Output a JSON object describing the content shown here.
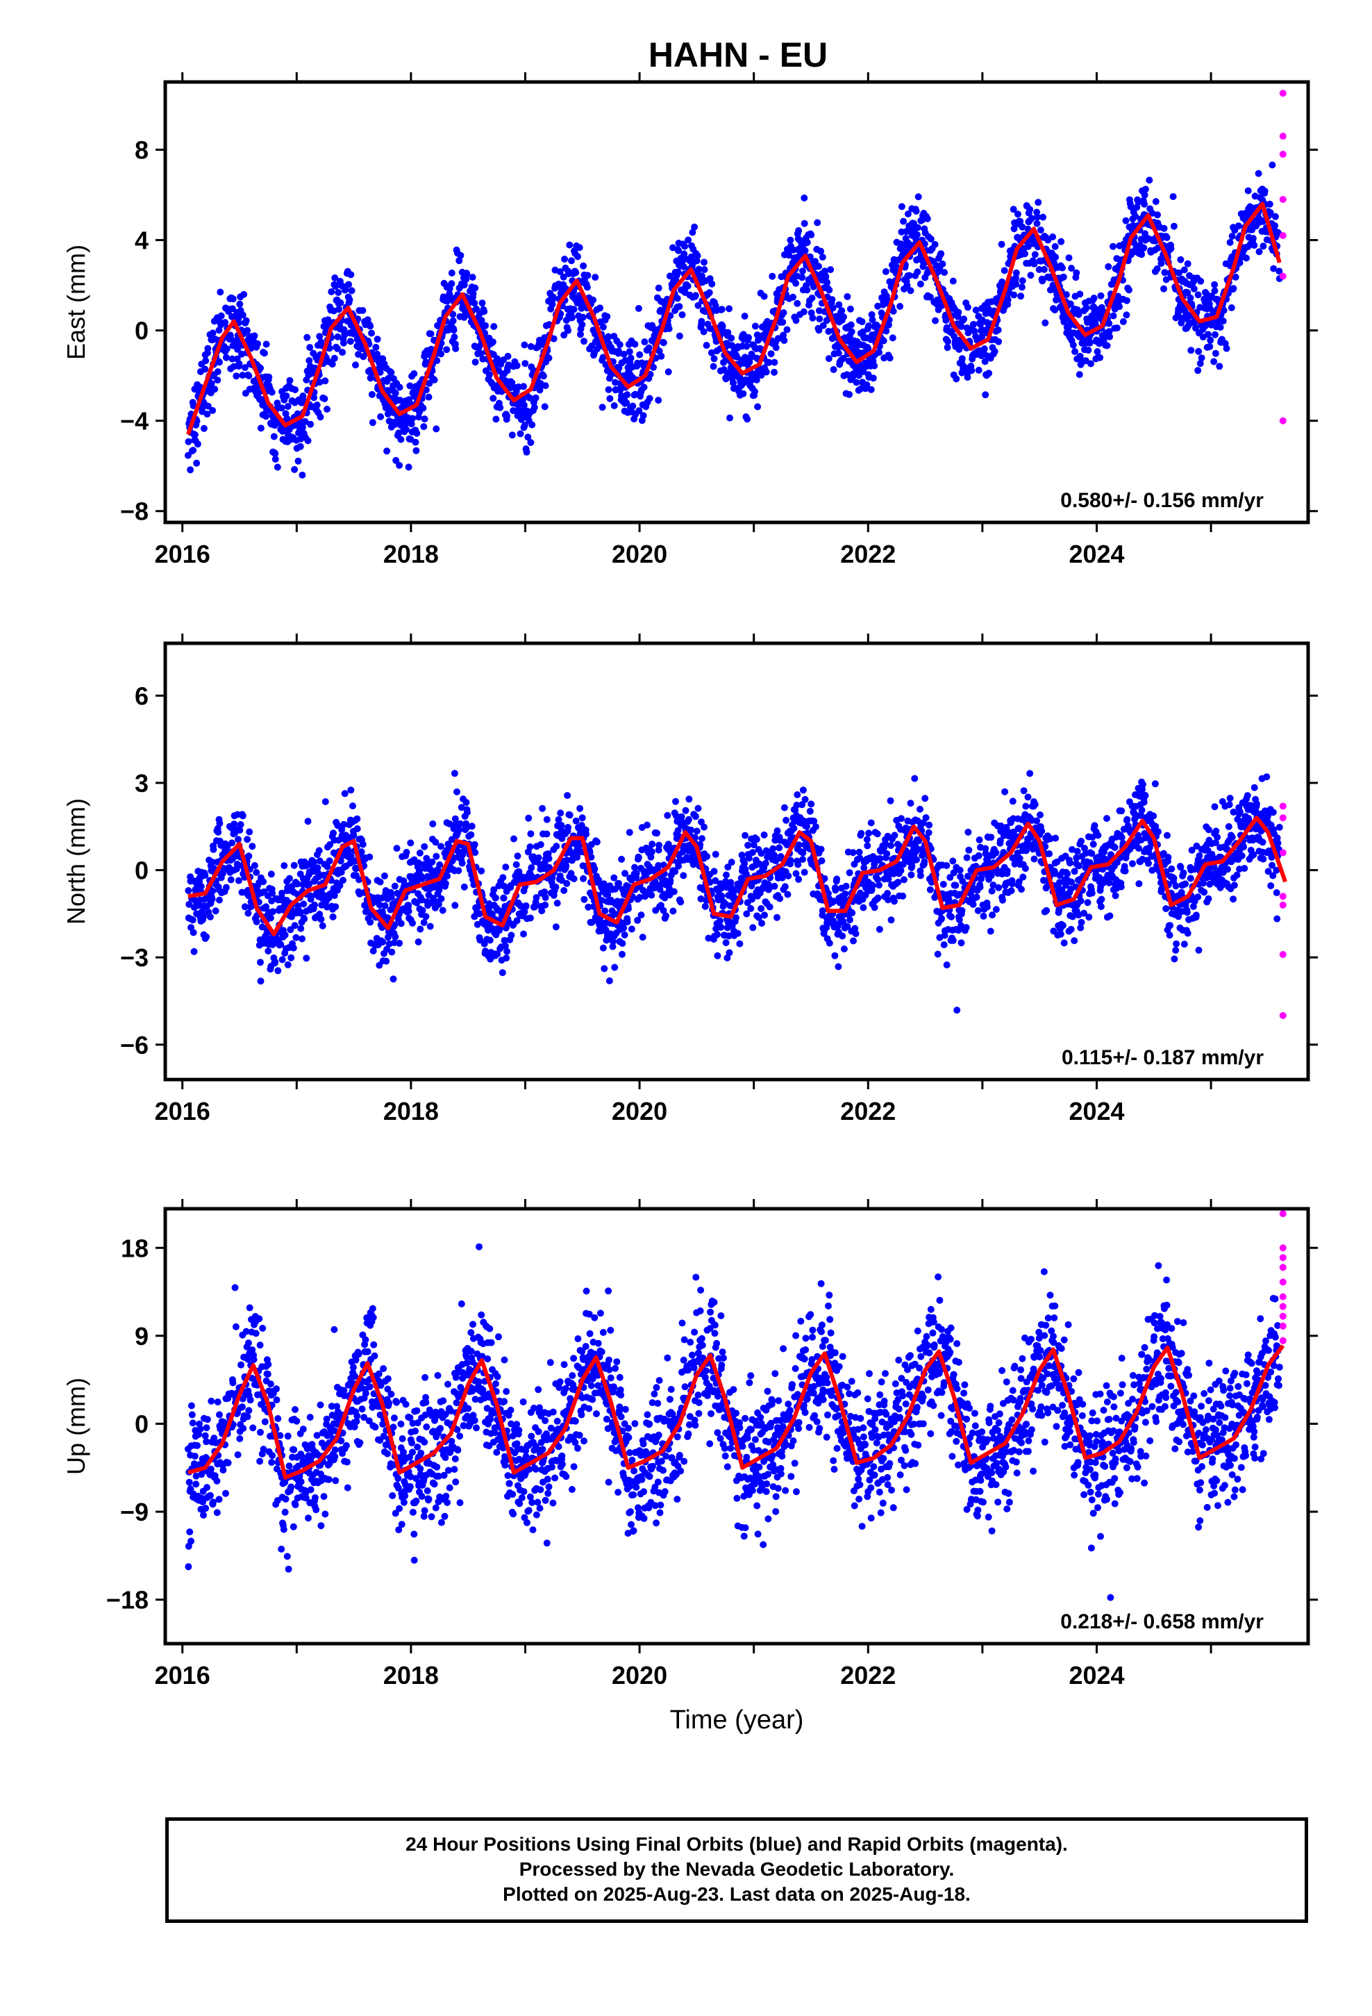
{
  "title": "HAHN - EU",
  "footer": {
    "line1": "24 Hour Positions Using Final Orbits (blue) and Rapid Orbits (magenta).",
    "line2": "Processed by the Nevada Geodetic Laboratory.",
    "line3": "Plotted on 2025-Aug-23. Last data on 2025-Aug-18."
  },
  "colors": {
    "final": "#0000ff",
    "rapid": "#ff00ff",
    "model": "#ff0000",
    "axis": "#000000"
  },
  "chart_data": [
    {
      "type": "scatter",
      "ylabel": "East (mm)",
      "xlabel": "",
      "xlim": [
        2015.85,
        2025.85
      ],
      "ylim": [
        -8.5,
        11
      ],
      "xticks": [
        2016,
        2018,
        2020,
        2022,
        2024
      ],
      "yticks": [
        -8,
        -4,
        0,
        4,
        8
      ],
      "rate_label": "0.580+/- 0.156 mm/yr",
      "model": {
        "x": [
          2016.05,
          2016.2,
          2016.35,
          2016.45,
          2016.6,
          2016.75,
          2016.9,
          2017.05,
          2017.2,
          2017.3,
          2017.45,
          2017.6,
          2017.75,
          2017.9,
          2018.05,
          2018.2,
          2018.3,
          2018.45,
          2018.6,
          2018.75,
          2018.9,
          2019.05,
          2019.2,
          2019.3,
          2019.45,
          2019.6,
          2019.75,
          2019.9,
          2020.05,
          2020.2,
          2020.3,
          2020.45,
          2020.6,
          2020.75,
          2020.9,
          2021.05,
          2021.2,
          2021.3,
          2021.45,
          2021.6,
          2021.75,
          2021.9,
          2022.05,
          2022.2,
          2022.3,
          2022.45,
          2022.6,
          2022.75,
          2022.9,
          2023.05,
          2023.2,
          2023.3,
          2023.45,
          2023.6,
          2023.75,
          2023.9,
          2024.05,
          2024.2,
          2024.3,
          2024.45,
          2024.6,
          2024.75,
          2024.9,
          2025.05,
          2025.2,
          2025.3,
          2025.45,
          2025.6
        ],
        "y": [
          -4.6,
          -2.4,
          -0.3,
          0.4,
          -1.2,
          -3.2,
          -4.2,
          -3.8,
          -1.6,
          0.1,
          1.0,
          -0.6,
          -2.7,
          -3.7,
          -3.3,
          -1.1,
          0.6,
          1.6,
          0.0,
          -2.1,
          -3.1,
          -2.6,
          -0.5,
          1.2,
          2.2,
          0.6,
          -1.6,
          -2.5,
          -2.0,
          0.1,
          1.8,
          2.7,
          1.0,
          -1.0,
          -1.9,
          -1.5,
          0.6,
          2.4,
          3.3,
          1.6,
          -0.4,
          -1.4,
          -0.9,
          1.2,
          3.0,
          3.9,
          2.2,
          0.2,
          -0.8,
          -0.4,
          1.8,
          3.6,
          4.5,
          2.8,
          0.8,
          -0.2,
          0.2,
          2.3,
          4.1,
          5.1,
          3.4,
          1.4,
          0.4,
          0.6,
          2.8,
          4.6,
          5.6,
          3.0
        ]
      },
      "rapid": {
        "x": [
          2025.63,
          2025.63,
          2025.63,
          2025.63,
          2025.63,
          2025.63,
          2025.63
        ],
        "y": [
          10.5,
          8.6,
          7.8,
          5.8,
          4.2,
          2.4,
          -4.0
        ]
      }
    },
    {
      "type": "scatter",
      "ylabel": "North (mm)",
      "xlabel": "",
      "xlim": [
        2015.85,
        2025.85
      ],
      "ylim": [
        -7.2,
        7.8
      ],
      "xticks": [
        2016,
        2018,
        2020,
        2022,
        2024
      ],
      "yticks": [
        -6,
        -3,
        0,
        3,
        6
      ],
      "rate_label": "0.115+/- 0.187 mm/yr",
      "model": {
        "x": [
          2016.05,
          2016.2,
          2016.35,
          2016.5,
          2016.65,
          2016.8,
          2016.95,
          2017.1,
          2017.25,
          2017.4,
          2017.5,
          2017.65,
          2017.8,
          2017.95,
          2018.1,
          2018.25,
          2018.4,
          2018.5,
          2018.65,
          2018.8,
          2018.95,
          2019.1,
          2019.25,
          2019.4,
          2019.5,
          2019.65,
          2019.8,
          2019.95,
          2020.1,
          2020.25,
          2020.4,
          2020.5,
          2020.65,
          2020.8,
          2020.95,
          2021.1,
          2021.25,
          2021.4,
          2021.5,
          2021.65,
          2021.8,
          2021.95,
          2022.1,
          2022.25,
          2022.4,
          2022.5,
          2022.65,
          2022.8,
          2022.95,
          2023.1,
          2023.25,
          2023.4,
          2023.5,
          2023.65,
          2023.8,
          2023.95,
          2024.1,
          2024.25,
          2024.4,
          2024.5,
          2024.65,
          2024.8,
          2024.95,
          2025.1,
          2025.25,
          2025.4,
          2025.5,
          2025.65
        ],
        "y": [
          -0.9,
          -0.8,
          0.3,
          0.9,
          -1.3,
          -2.2,
          -1.2,
          -0.7,
          -0.5,
          0.8,
          1.0,
          -1.3,
          -2.0,
          -0.7,
          -0.5,
          -0.3,
          1.0,
          0.9,
          -1.6,
          -1.9,
          -0.5,
          -0.4,
          0.0,
          1.1,
          1.1,
          -1.5,
          -1.8,
          -0.5,
          -0.3,
          0.1,
          1.3,
          0.8,
          -1.5,
          -1.6,
          -0.3,
          -0.2,
          0.2,
          1.3,
          1.0,
          -1.4,
          -1.4,
          -0.1,
          0.0,
          0.3,
          1.5,
          1.0,
          -1.3,
          -1.2,
          0.0,
          0.1,
          0.6,
          1.6,
          1.0,
          -1.2,
          -1.0,
          0.1,
          0.2,
          0.8,
          1.7,
          1.1,
          -1.2,
          -0.9,
          0.2,
          0.3,
          1.0,
          1.8,
          1.3,
          -0.4
        ]
      },
      "rapid": {
        "x": [
          2025.63,
          2025.63,
          2025.63,
          2025.63,
          2025.63,
          2025.63,
          2025.63
        ],
        "y": [
          2.2,
          1.8,
          0.6,
          -0.9,
          -1.2,
          -2.9,
          -5.0
        ]
      }
    },
    {
      "type": "scatter",
      "ylabel": "Up (mm)",
      "xlabel": "Time (year)",
      "xlim": [
        2015.85,
        2025.85
      ],
      "ylim": [
        -22.5,
        22
      ],
      "xticks": [
        2016,
        2018,
        2020,
        2022,
        2024
      ],
      "yticks": [
        -18,
        -9,
        0,
        9,
        18
      ],
      "rate_label": "0.218+/- 0.658 mm/yr",
      "model": {
        "x": [
          2016.05,
          2016.2,
          2016.35,
          2016.5,
          2016.62,
          2016.75,
          2016.9,
          2017.05,
          2017.2,
          2017.35,
          2017.5,
          2017.62,
          2017.75,
          2017.9,
          2018.05,
          2018.2,
          2018.35,
          2018.5,
          2018.62,
          2018.75,
          2018.9,
          2019.05,
          2019.2,
          2019.35,
          2019.5,
          2019.62,
          2019.75,
          2019.9,
          2020.05,
          2020.2,
          2020.35,
          2020.5,
          2020.62,
          2020.75,
          2020.9,
          2021.05,
          2021.2,
          2021.35,
          2021.5,
          2021.62,
          2021.75,
          2021.9,
          2022.05,
          2022.2,
          2022.35,
          2022.5,
          2022.62,
          2022.75,
          2022.9,
          2023.05,
          2023.2,
          2023.35,
          2023.5,
          2023.62,
          2023.75,
          2023.9,
          2024.05,
          2024.2,
          2024.35,
          2024.5,
          2024.62,
          2024.75,
          2024.9,
          2025.05,
          2025.2,
          2025.35,
          2025.5,
          2025.63
        ],
        "y": [
          -5.0,
          -4.5,
          -2.0,
          3.0,
          6.0,
          2.0,
          -5.5,
          -4.8,
          -3.8,
          -1.5,
          3.5,
          6.2,
          2.0,
          -5.0,
          -4.0,
          -3.0,
          -1.0,
          4.0,
          6.5,
          2.0,
          -5.0,
          -4.0,
          -3.0,
          -0.5,
          4.5,
          6.8,
          2.2,
          -4.5,
          -3.8,
          -2.8,
          0.0,
          5.0,
          7.0,
          2.5,
          -4.5,
          -3.5,
          -2.5,
          0.5,
          5.2,
          7.2,
          2.5,
          -4.0,
          -3.5,
          -2.2,
          0.8,
          5.5,
          7.4,
          2.8,
          -4.0,
          -3.0,
          -2.0,
          1.0,
          5.5,
          7.6,
          3.0,
          -3.5,
          -3.0,
          -1.8,
          1.2,
          5.8,
          7.8,
          3.0,
          -3.5,
          -2.5,
          -1.5,
          1.5,
          6.0,
          8.0
        ]
      },
      "rapid": {
        "x": [
          2025.63,
          2025.63,
          2025.63,
          2025.63,
          2025.63,
          2025.63,
          2025.63,
          2025.63,
          2025.63,
          2025.63
        ],
        "y": [
          21.5,
          18.0,
          17.0,
          16.0,
          14.5,
          13.0,
          12.0,
          11.0,
          10.0,
          8.5
        ]
      }
    }
  ]
}
